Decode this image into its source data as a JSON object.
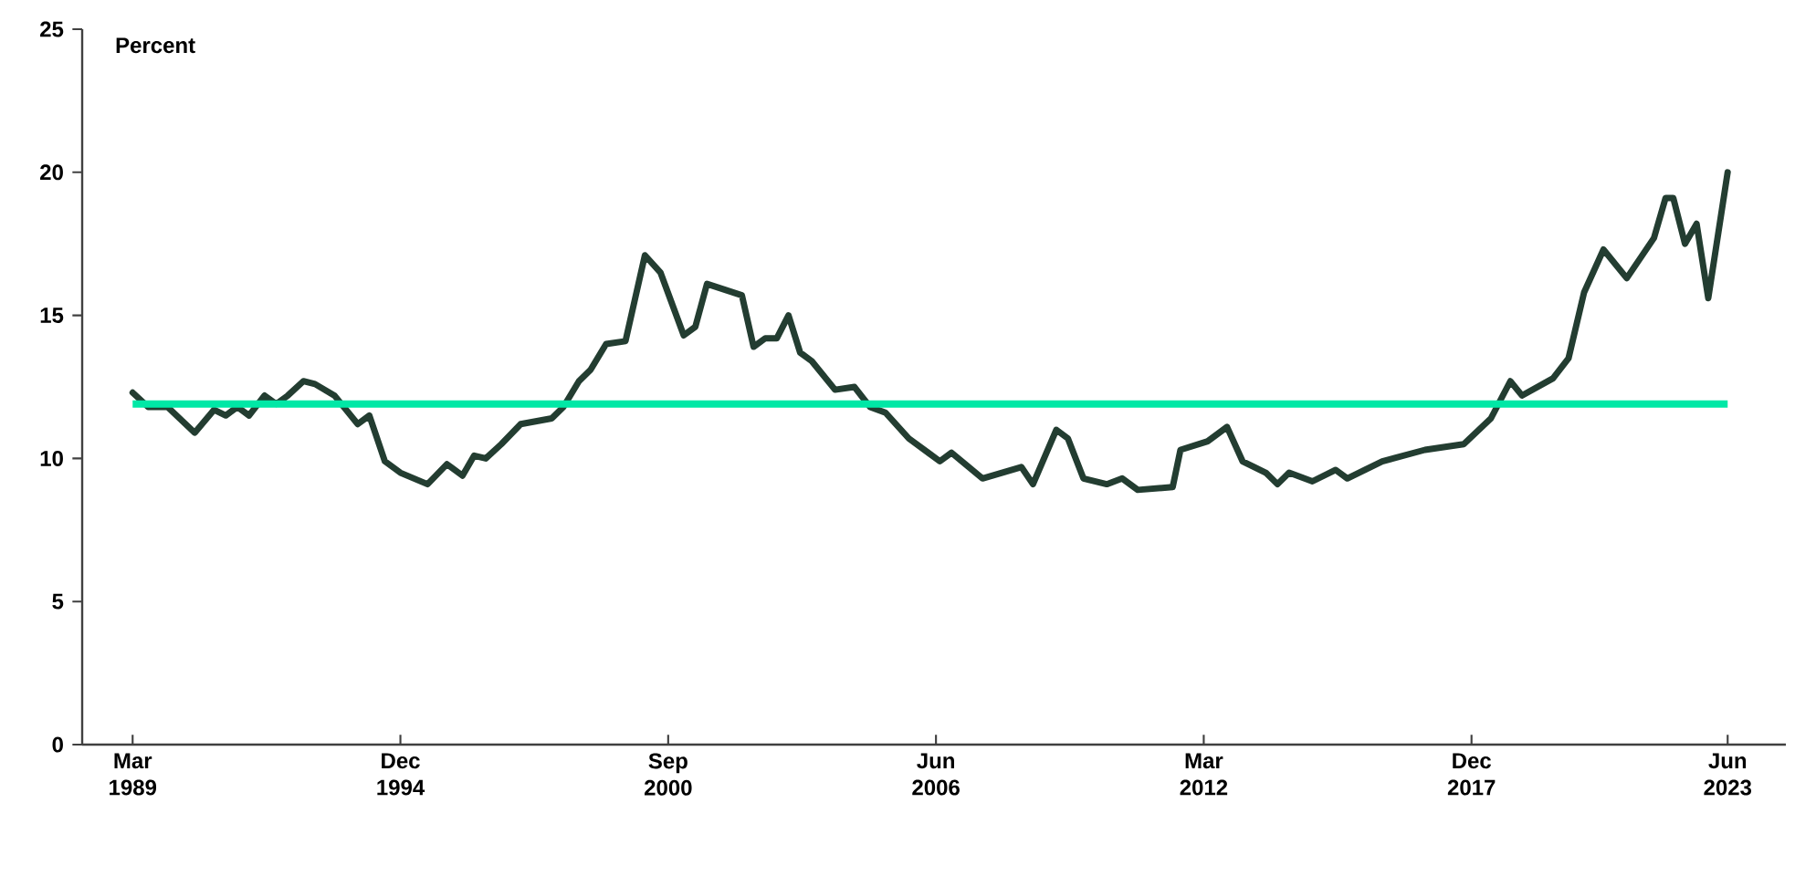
{
  "chart_data": {
    "type": "line",
    "ylabel": "Percent",
    "x": [
      "1989-03",
      "1989-07",
      "1989-12",
      "1990-07",
      "1990-12",
      "1991-03",
      "1991-06",
      "1991-09",
      "1992-01",
      "1992-04",
      "1992-07",
      "1992-11",
      "1993-02",
      "1993-07",
      "1994-01",
      "1994-04",
      "1994-08",
      "1994-12",
      "1995-07",
      "1995-12",
      "1996-04",
      "1996-07",
      "1996-10",
      "1997-02",
      "1997-07",
      "1998-03",
      "1998-06",
      "1998-10",
      "1999-01",
      "1999-05",
      "1999-10",
      "2000-03",
      "2000-07",
      "2001-01",
      "2001-04",
      "2001-07",
      "2002-04",
      "2002-07",
      "2002-10",
      "2003-01",
      "2003-04",
      "2003-07",
      "2003-10",
      "2004-04",
      "2004-09",
      "2005-01",
      "2005-05",
      "2005-11",
      "2006-07",
      "2006-10",
      "2007-06",
      "2008-04",
      "2008-07",
      "2009-01",
      "2009-04",
      "2009-08",
      "2010-02",
      "2010-06",
      "2010-10",
      "2011-07",
      "2011-09",
      "2012-04",
      "2012-09",
      "2013-01",
      "2013-07",
      "2013-10",
      "2014-01",
      "2014-07",
      "2015-01",
      "2015-04",
      "2016-01",
      "2016-12",
      "2017-10",
      "2018-05",
      "2018-10",
      "2019-01",
      "2019-09",
      "2020-01",
      "2020-05",
      "2020-10",
      "2021-04",
      "2021-11",
      "2022-02",
      "2022-04",
      "2022-07",
      "2022-10",
      "2023-01",
      "2023-06"
    ],
    "series": [
      {
        "color": "#233d31",
        "values": [
          12.3,
          11.8,
          11.8,
          10.9,
          11.7,
          11.5,
          11.8,
          11.5,
          12.2,
          11.9,
          12.2,
          12.7,
          12.6,
          12.2,
          11.2,
          11.5,
          9.9,
          9.5,
          9.1,
          9.8,
          9.4,
          10.1,
          10.0,
          10.5,
          11.2,
          11.4,
          11.8,
          12.7,
          13.1,
          14.0,
          14.1,
          17.1,
          16.5,
          14.3,
          14.6,
          16.1,
          15.7,
          13.9,
          14.2,
          14.2,
          15.0,
          13.7,
          13.4,
          12.4,
          12.5,
          11.8,
          11.6,
          10.7,
          9.9,
          10.2,
          9.3,
          9.7,
          9.1,
          11.0,
          10.7,
          9.3,
          9.1,
          9.3,
          8.9,
          9.0,
          10.3,
          10.6,
          11.1,
          9.9,
          9.5,
          9.1,
          9.5,
          9.2,
          9.6,
          9.3,
          9.9,
          10.3,
          10.5,
          11.4,
          12.7,
          12.2,
          12.8,
          13.5,
          15.8,
          17.3,
          16.3,
          17.7,
          19.1,
          19.1,
          17.5,
          18.2,
          15.6,
          20.0
        ]
      }
    ],
    "xlim": [
      "1988-02",
      "2024-09"
    ],
    "xticks": [
      {
        "value": "1989-03",
        "label": "Mar 1989"
      },
      {
        "value": "1994-12",
        "label": "Dec 1994"
      },
      {
        "value": "2000-09",
        "label": "Sep 2000"
      },
      {
        "value": "2006-06",
        "label": "Jun 2006"
      },
      {
        "value": "2012-03",
        "label": "Mar 2012"
      },
      {
        "value": "2017-12",
        "label": "Dec 2017"
      },
      {
        "value": "2023-06",
        "label": "Jun 2023"
      }
    ],
    "ylim": [
      0,
      25
    ],
    "yticks": [
      0,
      5,
      10,
      15,
      20,
      25
    ],
    "ref_lines": [
      {
        "axis": "y",
        "value": 11.9,
        "color": "#00e8a6"
      }
    ],
    "grid": false,
    "marker": "none",
    "line_style": "solid"
  }
}
